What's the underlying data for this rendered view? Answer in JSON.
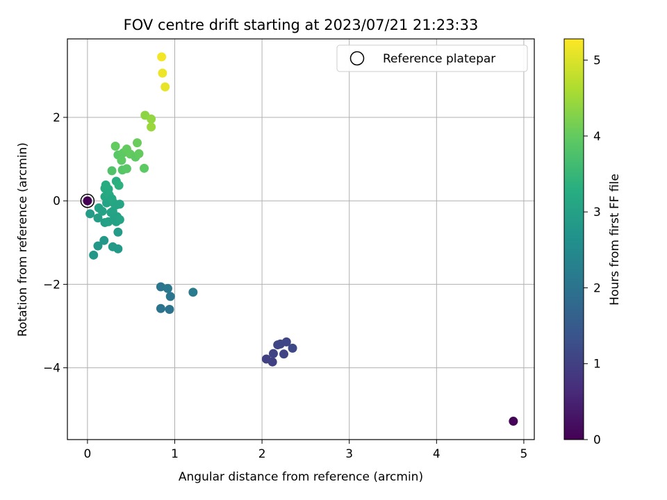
{
  "chart_data": {
    "type": "scatter",
    "title": "FOV centre drift starting at 2023/07/21 21:23:33",
    "xlabel": "Angular distance from reference (arcmin)",
    "ylabel": "Rotation from reference (arcmin)",
    "xlim": [
      -0.23,
      5.12
    ],
    "ylim": [
      -5.72,
      3.88
    ],
    "xticks": [
      0,
      1,
      2,
      3,
      4,
      5
    ],
    "xtick_labels": [
      "0",
      "1",
      "2",
      "3",
      "4",
      "5"
    ],
    "yticks": [
      -4,
      -2,
      0,
      2
    ],
    "ytick_labels": [
      "−4",
      "−2",
      "0",
      "2"
    ],
    "grid": true,
    "legend": {
      "placement": "top-right",
      "entries": [
        "Reference platepar"
      ]
    },
    "reference_point": {
      "x": 0,
      "y": 0
    },
    "colorbar": {
      "label": "Hours from first FF file",
      "range": [
        0,
        5.28
      ],
      "ticks": [
        0,
        1,
        2,
        3,
        4,
        5
      ],
      "tick_labels": [
        "0",
        "1",
        "2",
        "3",
        "4",
        "5"
      ],
      "colormap": "viridis"
    },
    "points": [
      {
        "x": 4.88,
        "y": -5.28,
        "c": 0.05
      },
      {
        "x": 2.05,
        "y": -3.79,
        "c": 1.0
      },
      {
        "x": 2.12,
        "y": -3.86,
        "c": 1.0
      },
      {
        "x": 2.13,
        "y": -3.66,
        "c": 1.05
      },
      {
        "x": 2.18,
        "y": -3.45,
        "c": 1.1
      },
      {
        "x": 2.21,
        "y": -3.43,
        "c": 1.1
      },
      {
        "x": 2.25,
        "y": -3.67,
        "c": 1.05
      },
      {
        "x": 2.28,
        "y": -3.38,
        "c": 1.1
      },
      {
        "x": 2.35,
        "y": -3.53,
        "c": 1.15
      },
      {
        "x": 0.84,
        "y": -2.06,
        "c": 2.05
      },
      {
        "x": 0.92,
        "y": -2.1,
        "c": 2.1
      },
      {
        "x": 0.95,
        "y": -2.29,
        "c": 2.05
      },
      {
        "x": 0.84,
        "y": -2.58,
        "c": 2.0
      },
      {
        "x": 0.94,
        "y": -2.6,
        "c": 2.0
      },
      {
        "x": 1.21,
        "y": -2.19,
        "c": 2.15
      },
      {
        "x": 0.0,
        "y": 0.0,
        "c": 0.0
      },
      {
        "x": 0.03,
        "y": -0.31,
        "c": 2.9
      },
      {
        "x": 0.07,
        "y": -1.3,
        "c": 2.8
      },
      {
        "x": 0.12,
        "y": -1.08,
        "c": 2.8
      },
      {
        "x": 0.19,
        "y": -0.95,
        "c": 2.8
      },
      {
        "x": 0.29,
        "y": -1.1,
        "c": 2.85
      },
      {
        "x": 0.35,
        "y": -1.15,
        "c": 2.85
      },
      {
        "x": 0.35,
        "y": -0.75,
        "c": 2.9
      },
      {
        "x": 0.12,
        "y": -0.41,
        "c": 2.95
      },
      {
        "x": 0.13,
        "y": -0.17,
        "c": 3.0
      },
      {
        "x": 0.17,
        "y": -0.25,
        "c": 3.0
      },
      {
        "x": 0.2,
        "y": -0.52,
        "c": 2.95
      },
      {
        "x": 0.24,
        "y": -0.5,
        "c": 3.0
      },
      {
        "x": 0.22,
        "y": -0.05,
        "c": 3.05
      },
      {
        "x": 0.27,
        "y": -0.28,
        "c": 3.05
      },
      {
        "x": 0.29,
        "y": -0.25,
        "c": 3.05
      },
      {
        "x": 0.3,
        "y": -0.45,
        "c": 3.0
      },
      {
        "x": 0.33,
        "y": -0.5,
        "c": 3.0
      },
      {
        "x": 0.34,
        "y": -0.38,
        "c": 3.0
      },
      {
        "x": 0.37,
        "y": -0.45,
        "c": 3.05
      },
      {
        "x": 0.3,
        "y": -0.05,
        "c": 3.1
      },
      {
        "x": 0.33,
        "y": -0.1,
        "c": 3.1
      },
      {
        "x": 0.37,
        "y": -0.08,
        "c": 3.1
      },
      {
        "x": 0.2,
        "y": 0.1,
        "c": 3.15
      },
      {
        "x": 0.2,
        "y": 0.3,
        "c": 3.2
      },
      {
        "x": 0.24,
        "y": 0.28,
        "c": 3.2
      },
      {
        "x": 0.21,
        "y": 0.38,
        "c": 3.25
      },
      {
        "x": 0.25,
        "y": 0.14,
        "c": 3.2
      },
      {
        "x": 0.28,
        "y": 0.05,
        "c": 3.15
      },
      {
        "x": 0.33,
        "y": 0.47,
        "c": 3.3
      },
      {
        "x": 0.36,
        "y": 0.37,
        "c": 3.35
      },
      {
        "x": 0.28,
        "y": 0.72,
        "c": 3.8
      },
      {
        "x": 0.4,
        "y": 0.74,
        "c": 3.85
      },
      {
        "x": 0.45,
        "y": 0.77,
        "c": 3.9
      },
      {
        "x": 0.35,
        "y": 1.1,
        "c": 3.9
      },
      {
        "x": 0.39,
        "y": 0.97,
        "c": 3.95
      },
      {
        "x": 0.41,
        "y": 1.15,
        "c": 3.95
      },
      {
        "x": 0.32,
        "y": 1.31,
        "c": 4.0
      },
      {
        "x": 0.45,
        "y": 1.24,
        "c": 4.0
      },
      {
        "x": 0.49,
        "y": 1.12,
        "c": 4.0
      },
      {
        "x": 0.55,
        "y": 1.05,
        "c": 3.95
      },
      {
        "x": 0.59,
        "y": 1.13,
        "c": 4.0
      },
      {
        "x": 0.57,
        "y": 1.39,
        "c": 4.05
      },
      {
        "x": 0.65,
        "y": 0.78,
        "c": 3.95
      },
      {
        "x": 0.66,
        "y": 2.05,
        "c": 4.35
      },
      {
        "x": 0.73,
        "y": 1.96,
        "c": 4.4
      },
      {
        "x": 0.73,
        "y": 1.77,
        "c": 4.45
      },
      {
        "x": 0.85,
        "y": 3.45,
        "c": 5.2
      },
      {
        "x": 0.86,
        "y": 3.06,
        "c": 5.15
      },
      {
        "x": 0.89,
        "y": 2.73,
        "c": 5.1
      }
    ]
  }
}
